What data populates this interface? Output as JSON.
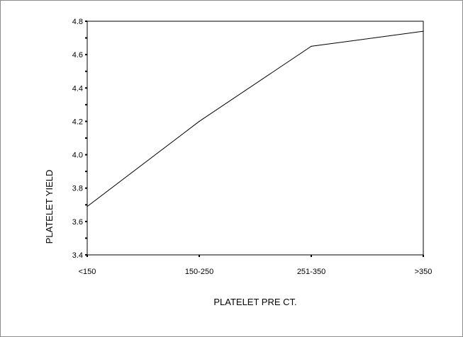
{
  "chart_data": {
    "type": "line",
    "title": "",
    "xlabel": "PLATELET PRE CT.",
    "ylabel": "PLATELET YIELD",
    "categories": [
      "<150",
      "150-250",
      "251-350",
      ">350"
    ],
    "series": [
      {
        "values": [
          3.69,
          4.2,
          4.65,
          4.74
        ]
      }
    ],
    "ylim": [
      3.4,
      4.8
    ],
    "yticks": [
      "3.4",
      "3.6",
      "3.8",
      "4.0",
      "4.2",
      "4.4",
      "4.6",
      "4.8"
    ],
    "grid": false,
    "legend": "none",
    "line_color": "#000000"
  }
}
